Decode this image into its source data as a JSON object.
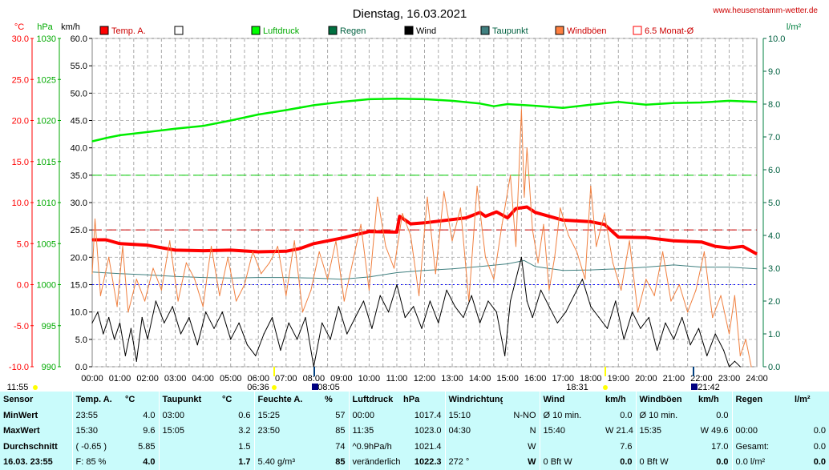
{
  "header": {
    "title": "Dienstag, 16.03.2021",
    "site": "www.heusenstamm-wetter.de"
  },
  "chart_data": {
    "type": "line",
    "title": "Dienstag, 16.03.2021",
    "axis_units": {
      "temp": "°C",
      "pressure": "hPa",
      "wind": "km/h",
      "rain": "l/m²"
    },
    "temp_ticks": [
      "30.0",
      "25.0",
      "20.0",
      "15.0",
      "10.0",
      "5.0",
      "0.0",
      "-5.0",
      "-10.0"
    ],
    "pressure_ticks": [
      "1030",
      "1025",
      "1020",
      "1015",
      "1010",
      "1005",
      "1000",
      "995",
      "990"
    ],
    "wind_ticks": [
      "60.0",
      "55.0",
      "50.0",
      "45.0",
      "40.0",
      "35.0",
      "30.0",
      "25.0",
      "20.0",
      "15.0",
      "10.0",
      "5.0",
      "0.0"
    ],
    "rain_ticks": [
      "10.0",
      "9.0",
      "8.0",
      "7.0",
      "6.0",
      "5.0",
      "4.0",
      "3.0",
      "2.0",
      "1.0",
      "0.0"
    ],
    "x_ticks": [
      "00:00",
      "01:00",
      "02:00",
      "03:00",
      "04:00",
      "05:00",
      "06:00",
      "07:00",
      "08:00",
      "09:00",
      "10:00",
      "11:00",
      "12:00",
      "13:00",
      "14:00",
      "15:00",
      "16:00",
      "17:00",
      "18:00",
      "19:00",
      "20:00",
      "21:00",
      "22:00",
      "23:00",
      "24:00"
    ],
    "wind_range": [
      0,
      60
    ],
    "x_range": [
      0,
      24
    ],
    "legend": [
      {
        "name": "Temp. A.",
        "color": "#ff0000"
      },
      {
        "name": "",
        "color": "#ffffff"
      },
      {
        "name": "Luftdruck",
        "color": "#00ff00"
      },
      {
        "name": "Regen",
        "color": "#007040"
      },
      {
        "name": "Wind",
        "color": "#000000"
      },
      {
        "name": "Taupunkt",
        "color": "#408080"
      },
      {
        "name": "Windböen",
        "color": "#ff8040"
      },
      {
        "name": "6.5 Monat-Ø",
        "color": "#ff0000"
      }
    ],
    "reference_lines": [
      {
        "name": "Luftdruck-Mittel",
        "wind_scale_value": 35,
        "color": "#00cc00"
      },
      {
        "name": "6.5 Monat-Ø",
        "wind_scale_value": 25,
        "color": "#cc0000"
      },
      {
        "name": "Nulllinie",
        "wind_scale_value": 15,
        "color": "#0000ff"
      }
    ],
    "series": [
      {
        "name": "Luftdruck",
        "color": "#00ee00",
        "width": 2.5,
        "x": [
          0,
          0.5,
          1,
          2,
          3,
          4,
          5,
          6,
          7,
          8,
          9,
          10,
          11,
          12,
          13,
          14,
          14.5,
          15,
          16,
          17,
          18,
          19,
          20,
          21,
          22,
          23,
          24
        ],
        "y": [
          41.2,
          41.8,
          42.3,
          42.9,
          43.5,
          44.0,
          45.0,
          46.1,
          46.9,
          47.8,
          48.4,
          48.9,
          49.0,
          48.9,
          48.6,
          48.1,
          47.6,
          48.0,
          47.7,
          47.3,
          47.9,
          48.4,
          47.9,
          48.2,
          48.3,
          48.6,
          48.4
        ]
      },
      {
        "name": "Temp. A.",
        "color": "#ff0000",
        "width": 4,
        "x": [
          0,
          0.5,
          1,
          2,
          3,
          4,
          5,
          6,
          7,
          7.5,
          8,
          9,
          10,
          11,
          11.1,
          11.5,
          12,
          13,
          13.5,
          14,
          14.2,
          14.6,
          15,
          15.3,
          15.7,
          16,
          17,
          18,
          18.5,
          19,
          20,
          21,
          22,
          22.5,
          23,
          23.5,
          24
        ],
        "y": [
          23.2,
          23.2,
          22.5,
          22.2,
          21.3,
          21.2,
          21.3,
          21.0,
          21.1,
          21.6,
          22.5,
          23.5,
          24.7,
          24.6,
          27.5,
          26.1,
          26.3,
          26.9,
          27.2,
          28.2,
          27.5,
          28.3,
          27.2,
          28.9,
          29.2,
          28.2,
          26.8,
          26.5,
          26.0,
          23.7,
          23.6,
          23.0,
          22.8,
          22.0,
          21.7,
          22.0,
          20.6
        ]
      },
      {
        "name": "Taupunkt",
        "color": "#408080",
        "width": 1,
        "x": [
          0,
          1,
          2,
          3,
          4,
          5,
          6,
          7,
          8,
          9,
          10,
          11,
          12,
          13,
          14,
          15,
          15.6,
          16,
          17,
          18,
          19,
          20,
          21,
          22,
          23,
          24
        ],
        "y": [
          17.3,
          17.0,
          16.8,
          16.5,
          16.3,
          16.2,
          16.3,
          16.3,
          16.2,
          16.0,
          16.4,
          17.2,
          17.6,
          17.9,
          18.3,
          18.8,
          19.4,
          18.3,
          17.6,
          17.7,
          17.9,
          18.2,
          18.6,
          18.2,
          18.2,
          17.9
        ]
      },
      {
        "name": "Windböen",
        "color": "#f08040",
        "width": 1,
        "x": [
          0,
          0.1,
          0.3,
          0.6,
          0.9,
          1.1,
          1.3,
          1.6,
          1.9,
          2.2,
          2.5,
          2.8,
          3.1,
          3.4,
          3.7,
          4.0,
          4.3,
          4.6,
          4.9,
          5.2,
          5.5,
          5.8,
          6.1,
          6.4,
          6.7,
          7.0,
          7.3,
          7.6,
          7.9,
          8.2,
          8.5,
          8.8,
          9.1,
          9.4,
          9.7,
          10.0,
          10.3,
          10.6,
          10.9,
          11.2,
          11.5,
          11.8,
          12.1,
          12.4,
          12.7,
          13.0,
          13.3,
          13.6,
          13.9,
          14.2,
          14.5,
          14.8,
          15.1,
          15.3,
          15.5,
          15.6,
          15.7,
          15.9,
          16.1,
          16.3,
          16.5,
          16.7,
          16.9,
          17.2,
          17.5,
          17.8,
          18.0,
          18.2,
          18.5,
          18.8,
          19.1,
          19.4,
          19.7,
          20.0,
          20.3,
          20.6,
          20.9,
          21.2,
          21.5,
          21.8,
          22.1,
          22.4,
          22.7,
          23.0,
          23.2,
          23.4,
          23.6,
          23.8
        ],
        "y": [
          17,
          27,
          13,
          20,
          11,
          22,
          10,
          16,
          12,
          18,
          14,
          23,
          12,
          19,
          16,
          11,
          22,
          13,
          20,
          12,
          15,
          21,
          17,
          19,
          22,
          13,
          23,
          10,
          14,
          21,
          16,
          23,
          12,
          19,
          26,
          14,
          31,
          22,
          18,
          28,
          24,
          13,
          31,
          17,
          32,
          23,
          29,
          12,
          33,
          20,
          16,
          26,
          35,
          22,
          47,
          31,
          40,
          25,
          19,
          26,
          14,
          20,
          29,
          24,
          21,
          16,
          33,
          22,
          28,
          19,
          14,
          23,
          10,
          16,
          13,
          21,
          12,
          15,
          10,
          14,
          21,
          9,
          13,
          6,
          13,
          2,
          5,
          0
        ]
      },
      {
        "name": "Wind",
        "color": "#000000",
        "width": 1,
        "x": [
          0,
          0.2,
          0.4,
          0.6,
          0.8,
          1.0,
          1.2,
          1.4,
          1.6,
          1.8,
          2.0,
          2.3,
          2.6,
          2.9,
          3.2,
          3.5,
          3.8,
          4.1,
          4.4,
          4.7,
          5.0,
          5.3,
          5.6,
          5.9,
          6.2,
          6.5,
          6.8,
          7.1,
          7.4,
          7.7,
          8.0,
          8.3,
          8.6,
          8.9,
          9.2,
          9.5,
          9.8,
          10.1,
          10.4,
          10.7,
          11.0,
          11.3,
          11.6,
          11.9,
          12.2,
          12.5,
          12.8,
          13.1,
          13.4,
          13.7,
          14.0,
          14.3,
          14.6,
          14.9,
          15.1,
          15.3,
          15.5,
          15.7,
          15.9,
          16.2,
          16.5,
          16.8,
          17.1,
          17.4,
          17.7,
          18.0,
          18.3,
          18.6,
          18.9,
          19.2,
          19.5,
          19.8,
          20.1,
          20.4,
          20.7,
          21.0,
          21.3,
          21.6,
          21.9,
          22.2,
          22.5,
          22.8,
          23.0,
          23.2,
          23.4
        ],
        "y": [
          8,
          10,
          6,
          9,
          5,
          8,
          2,
          7,
          1,
          9,
          5,
          12,
          8,
          11,
          6,
          9,
          4,
          10,
          7,
          10,
          5,
          8,
          4,
          2,
          6,
          9,
          3,
          8,
          5,
          9,
          0,
          8,
          5,
          11,
          6,
          9,
          12,
          7,
          13,
          10,
          15,
          9,
          11,
          7,
          12,
          8,
          14,
          11,
          9,
          13,
          8,
          12,
          10,
          2,
          12,
          16,
          20,
          12,
          9,
          14,
          11,
          8,
          10,
          13,
          16,
          11,
          9,
          7,
          12,
          5,
          10,
          7,
          9,
          3,
          8,
          5,
          9,
          4,
          7,
          2,
          6,
          3,
          0,
          1,
          0
        ]
      }
    ],
    "event_labels": [
      {
        "text": "11:55",
        "kind": "min-temp"
      },
      {
        "text": "06:36",
        "kind": "sunrise"
      },
      {
        "text": "08:05",
        "kind": "marker"
      },
      {
        "text": "18:31",
        "kind": "sunset"
      },
      {
        "text": "21:42",
        "kind": "marker"
      }
    ]
  },
  "stats": {
    "headers": [
      {
        "label": "Sensor",
        "unit": ""
      },
      {
        "label": "Temp. A.",
        "unit": "°C"
      },
      {
        "label": "Taupunkt",
        "unit": "°C"
      },
      {
        "label": "Feuchte A.",
        "unit": "%"
      },
      {
        "label": "Luftdruck",
        "unit": "hPa"
      },
      {
        "label": "Windrichtung",
        "unit": ""
      },
      {
        "label": "Wind",
        "unit": "km/h"
      },
      {
        "label": "Windböen",
        "unit": "km/h"
      },
      {
        "label": "Regen",
        "unit": "l/m²"
      }
    ],
    "rows": [
      {
        "label": "MinWert",
        "cells": [
          [
            "23:55",
            "4.0"
          ],
          [
            "03:00",
            "0.6"
          ],
          [
            "15:25",
            "57"
          ],
          [
            "00:00",
            "1017.4"
          ],
          [
            "15:10",
            "N-NO"
          ],
          [
            "Ø 10 min.",
            "0.0"
          ],
          [
            "Ø 10 min.",
            "0.0"
          ],
          [
            "",
            ""
          ]
        ]
      },
      {
        "label": "MaxWert",
        "cells": [
          [
            "15:30",
            "9.6"
          ],
          [
            "15:05",
            "3.2"
          ],
          [
            "23:50",
            "85"
          ],
          [
            "11:35",
            "1023.0"
          ],
          [
            "04:30",
            "N"
          ],
          [
            "15:40",
            "W 21.4"
          ],
          [
            "15:35",
            "W 49.6"
          ],
          [
            "00:00",
            "0.0"
          ]
        ]
      },
      {
        "label": "Durchschnitt",
        "cells": [
          [
            "( -0.65 )",
            "5.85"
          ],
          [
            "",
            "1.5"
          ],
          [
            "",
            "74"
          ],
          [
            "^0.9hPa/h",
            "1021.4"
          ],
          [
            "",
            "W"
          ],
          [
            "",
            "7.6"
          ],
          [
            "",
            "17.0"
          ],
          [
            "Gesamt:",
            "0.0"
          ]
        ]
      },
      {
        "label": "16.03. 23:55",
        "cells": [
          [
            "F: 85 %",
            "4.0"
          ],
          [
            "",
            "1.7"
          ],
          [
            "5.40 g/m³",
            "85"
          ],
          [
            "veränderlich",
            "1022.3"
          ],
          [
            "272 °",
            "W"
          ],
          [
            "0 Bft W",
            "0.0"
          ],
          [
            "0 Bft W",
            "0.0"
          ],
          [
            "0.0 l/m²",
            "0.0"
          ]
        ]
      }
    ]
  }
}
